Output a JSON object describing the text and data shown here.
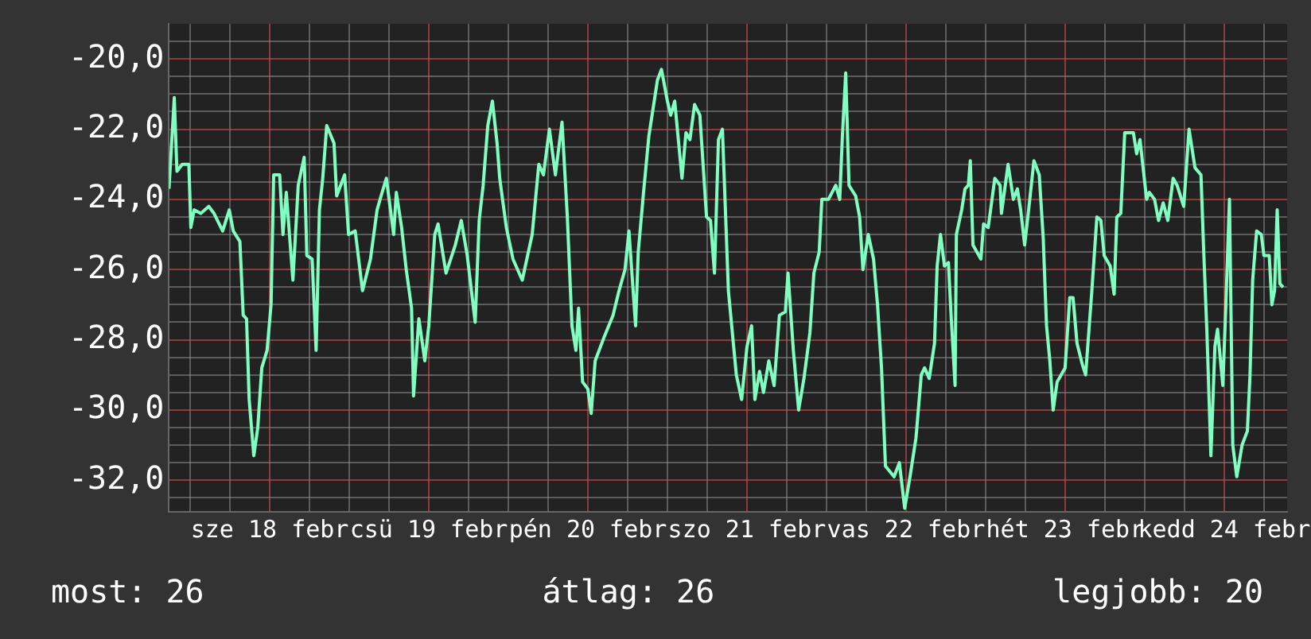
{
  "chart_data": {
    "type": "line",
    "color": "#80ffc0",
    "grid": true,
    "legend": false,
    "xlim": [
      "--02-17T08:48",
      "--02-24T09:30"
    ],
    "xticks": [
      {
        "value": "--02-17T12:00",
        "label": null
      },
      {
        "value": "--02-17T18:00",
        "label": null
      },
      {
        "value": "--02-18",
        "label": "sze 18 febr"
      },
      {
        "value": "--02-18T06:00",
        "label": null
      },
      {
        "value": "--02-18T12:00",
        "label": null
      },
      {
        "value": "--02-18T18:00",
        "label": null
      },
      {
        "value": "--02-19",
        "label": "csü 19 febr"
      },
      {
        "value": "--02-19T06:00",
        "label": null
      },
      {
        "value": "--02-19T12:00",
        "label": null
      },
      {
        "value": "--02-19T18:00",
        "label": null
      },
      {
        "value": "--02-20",
        "label": "pén 20 febr"
      },
      {
        "value": "--02-20T06:00",
        "label": null
      },
      {
        "value": "--02-20T12:00",
        "label": null
      },
      {
        "value": "--02-20T18:00",
        "label": null
      },
      {
        "value": "--02-21",
        "label": "szo 21 febr"
      },
      {
        "value": "--02-21T06:00",
        "label": null
      },
      {
        "value": "--02-21T12:00",
        "label": null
      },
      {
        "value": "--02-21T18:00",
        "label": null
      },
      {
        "value": "--02-22",
        "label": "vas 22 febr"
      },
      {
        "value": "--02-22T06:00",
        "label": null
      },
      {
        "value": "--02-22T12:00",
        "label": null
      },
      {
        "value": "--02-22T18:00",
        "label": null
      },
      {
        "value": "--02-23",
        "label": "hét 23 febr"
      },
      {
        "value": "--02-23T06:00",
        "label": null
      },
      {
        "value": "--02-23T12:00",
        "label": null
      },
      {
        "value": "--02-23T18:00",
        "label": null
      },
      {
        "value": "--02-24",
        "label": "kedd 24 febr"
      },
      {
        "value": "--02-24T06:00",
        "label": null
      }
    ],
    "ylim": [
      -32.9,
      -19.0
    ],
    "yticks": [
      {
        "value": -19.5,
        "label": null
      },
      {
        "value": -20,
        "label": "-20,0"
      },
      {
        "value": -20.5,
        "label": null
      },
      {
        "value": -21,
        "label": null
      },
      {
        "value": -21.5,
        "label": null
      },
      {
        "value": -22,
        "label": "-22,0"
      },
      {
        "value": -22.5,
        "label": null
      },
      {
        "value": -23,
        "label": null
      },
      {
        "value": -23.5,
        "label": null
      },
      {
        "value": -24,
        "label": "-24,0"
      },
      {
        "value": -24.5,
        "label": null
      },
      {
        "value": -25,
        "label": null
      },
      {
        "value": -25.5,
        "label": null
      },
      {
        "value": -26,
        "label": "-26,0"
      },
      {
        "value": -26.5,
        "label": null
      },
      {
        "value": -27,
        "label": null
      },
      {
        "value": -27.5,
        "label": null
      },
      {
        "value": -28,
        "label": "-28,0"
      },
      {
        "value": -28.5,
        "label": null
      },
      {
        "value": -29,
        "label": null
      },
      {
        "value": -29.5,
        "label": null
      },
      {
        "value": -30,
        "label": "-30,0"
      },
      {
        "value": -30.5,
        "label": null
      },
      {
        "value": -31,
        "label": null
      },
      {
        "value": -31.5,
        "label": null
      },
      {
        "value": -32,
        "label": "-32,0"
      },
      {
        "value": -32.5,
        "label": null
      }
    ],
    "annotations": [
      "most: 26",
      "átlag: 26",
      "legjobb: 20"
    ],
    "x": [
      "--02-17T08:48",
      "--02-17T09:36",
      "--02-17T10:00",
      "--02-17T10:48",
      "--02-17T11:48",
      "--02-17T12:06",
      "--02-17T12:36",
      "--02-17T13:36",
      "--02-17T14:48",
      "--02-17T15:36",
      "--02-17T16:54",
      "--02-17T17:54",
      "--02-17T18:30",
      "--02-17T19:30",
      "--02-17T20:00",
      "--02-17T20:30",
      "--02-17T20:54",
      "--02-17T21:36",
      "--02-17T22:12",
      "--02-17T22:48",
      "--02-17T23:36",
      "--02-18T00:12",
      "--02-18T00:36",
      "--02-18T01:30",
      "--02-18T02:00",
      "--02-18T02:30",
      "--02-18T03:06",
      "--02-18T03:30",
      "--02-18T04:18",
      "--02-18T05:12",
      "--02-18T05:36",
      "--02-18T06:24",
      "--02-18T07:00",
      "--02-18T07:30",
      "--02-18T08:00",
      "--02-18T08:36",
      "--02-18T09:42",
      "--02-18T10:06",
      "--02-18T10:42",
      "--02-18T11:18",
      "--02-18T11:54",
      "--02-18T12:54",
      "--02-18T14:00",
      "--02-18T15:12",
      "--02-18T16:12",
      "--02-18T16:48",
      "--02-18T17:36",
      "--02-18T18:42",
      "--02-18T19:06",
      "--02-18T19:54",
      "--02-18T20:36",
      "--02-18T21:24",
      "--02-18T21:42",
      "--02-18T22:30",
      "--02-18T23:24",
      "--02-19T00:00",
      "--02-19T00:54",
      "--02-19T01:24",
      "--02-19T02:36",
      "--02-19T04:00",
      "--02-19T04:54",
      "--02-19T05:48",
      "--02-19T07:00",
      "--02-19T07:36",
      "--02-19T08:12",
      "--02-19T08:54",
      "--02-19T09:36",
      "--02-19T10:18",
      "--02-19T10:42",
      "--02-19T11:42",
      "--02-19T12:42",
      "--02-19T14:06",
      "--02-19T15:36",
      "--02-19T16:36",
      "--02-19T17:18",
      "--02-19T18:12",
      "--02-19T19:06",
      "--02-19T20:06",
      "--02-19T20:54",
      "--02-19T21:36",
      "--02-19T22:12",
      "--02-19T22:36",
      "--02-19T23:12",
      "--02-20T00:00",
      "--02-20T00:30",
      "--02-20T01:06",
      "--02-20T02:30",
      "--02-20T03:48",
      "--02-20T04:42",
      "--02-20T05:36",
      "--02-20T06:12",
      "--02-20T07:12",
      "--02-20T07:36",
      "--02-20T08:24",
      "--02-20T09:12",
      "--02-20T10:30",
      "--02-20T11:06",
      "--02-20T12:00",
      "--02-20T12:30",
      "--02-20T13:06",
      "--02-20T14:12",
      "--02-20T14:48",
      "--02-20T15:24",
      "--02-20T16:06",
      "--02-20T16:54",
      "--02-20T17:54",
      "--02-20T18:30",
      "--02-20T19:06",
      "--02-20T19:42",
      "--02-20T20:18",
      "--02-20T21:12",
      "--02-20T21:48",
      "--02-20T22:24",
      "--02-20T23:12",
      "--02-21T00:00",
      "--02-21T00:42",
      "--02-21T01:12",
      "--02-21T01:54",
      "--02-21T02:30",
      "--02-21T03:18",
      "--02-21T04:06",
      "--02-21T04:54",
      "--02-21T05:48",
      "--02-21T06:12",
      "--02-21T07:00",
      "--02-21T07:48",
      "--02-21T08:36",
      "--02-21T09:30",
      "--02-21T10:06",
      "--02-21T10:54",
      "--02-21T11:18",
      "--02-21T12:18",
      "--02-21T13:24",
      "--02-21T14:00",
      "--02-21T14:24",
      "--02-21T14:54",
      "--02-21T15:24",
      "--02-21T16:24",
      "--02-21T17:00",
      "--02-21T17:30",
      "--02-21T18:18",
      "--02-21T19:06",
      "--02-21T19:42",
      "--02-21T20:18",
      "--02-21T20:54",
      "--02-21T22:12",
      "--02-21T23:00",
      "--02-21T23:48",
      "--02-22T00:36",
      "--02-22T01:30",
      "--02-22T02:18",
      "--02-22T02:48",
      "--02-22T03:30",
      "--02-22T04:18",
      "--02-22T04:42",
      "--02-22T05:12",
      "--02-22T05:48",
      "--02-22T06:24",
      "--02-22T06:48",
      "--02-22T07:24",
      "--02-22T07:36",
      "--02-22T08:24",
      "--02-22T08:54",
      "--02-22T09:24",
      "--02-22T09:42",
      "--02-22T10:06",
      "--02-22T11:18",
      "--02-22T11:42",
      "--02-22T12:24",
      "--02-22T13:24",
      "--02-22T14:12",
      "--02-22T14:24",
      "--02-22T15:24",
      "--02-22T16:12",
      "--02-22T16:48",
      "--02-22T17:18",
      "--02-22T17:54",
      "--02-22T18:30",
      "--02-22T19:18",
      "--02-22T20:06",
      "--02-22T20:42",
      "--02-22T21:12",
      "--02-22T21:42",
      "--02-22T22:12",
      "--02-22T22:48",
      "--02-23T00:00",
      "--02-23T00:42",
      "--02-23T01:12",
      "--02-23T01:48",
      "--02-23T02:36",
      "--02-23T03:06",
      "--02-23T04:00",
      "--02-23T04:48",
      "--02-23T05:24",
      "--02-23T05:54",
      "--02-23T06:48",
      "--02-23T07:24",
      "--02-23T07:48",
      "--02-23T08:24",
      "--02-23T09:00",
      "--02-23T10:18",
      "--02-23T10:48",
      "--02-23T11:18",
      "--02-23T12:18",
      "--02-23T12:42",
      "--02-23T13:30",
      "--02-23T14:06",
      "--02-23T14:48",
      "--02-23T15:30",
      "--02-23T16:18",
      "--02-23T16:54",
      "--02-23T17:54",
      "--02-23T18:42",
      "--02-23T19:36",
      "--02-23T20:30",
      "--02-23T20:54",
      "--02-23T21:24",
      "--02-23T22:00",
      "--02-23T22:36",
      "--02-23T23:00",
      "--02-23T23:48",
      "--02-24T00:12",
      "--02-24T00:48",
      "--02-24T01:18",
      "--02-24T01:54",
      "--02-24T02:42",
      "--02-24T03:30",
      "--02-24T03:54",
      "--02-24T04:18",
      "--02-24T04:54",
      "--02-24T05:36",
      "--02-24T06:00",
      "--02-24T06:48",
      "--02-24T07:12",
      "--02-24T07:36",
      "--02-24T08:00",
      "--02-24T08:24",
      "--02-24T08:54"
    ],
    "values": [
      -23.7,
      -21.1,
      -23.2,
      -23.0,
      -23.0,
      -24.8,
      -24.3,
      -24.4,
      -24.2,
      -24.4,
      -24.9,
      -24.3,
      -24.9,
      -25.2,
      -27.3,
      -27.4,
      -29.7,
      -31.3,
      -30.5,
      -28.8,
      -28.3,
      -27.0,
      -23.3,
      -23.3,
      -25.0,
      -23.8,
      -25.3,
      -26.3,
      -23.6,
      -22.8,
      -25.6,
      -25.7,
      -28.3,
      -24.3,
      -23.4,
      -21.9,
      -22.4,
      -23.9,
      -23.6,
      -23.3,
      -25.0,
      -24.9,
      -26.6,
      -25.7,
      -24.3,
      -23.9,
      -23.4,
      -25.0,
      -23.8,
      -24.8,
      -26.0,
      -27.1,
      -29.6,
      -27.4,
      -28.6,
      -27.6,
      -25.0,
      -24.7,
      -26.1,
      -25.3,
      -24.6,
      -25.6,
      -27.5,
      -24.6,
      -23.6,
      -21.9,
      -21.2,
      -22.4,
      -23.4,
      -24.8,
      -25.7,
      -26.3,
      -25.0,
      -23.0,
      -23.3,
      -22.0,
      -23.3,
      -21.8,
      -24.5,
      -27.6,
      -28.3,
      -27.1,
      -29.2,
      -29.4,
      -30.1,
      -28.6,
      -27.9,
      -27.3,
      -26.6,
      -26.0,
      -24.9,
      -27.6,
      -25.5,
      -23.8,
      -22.2,
      -20.6,
      -20.3,
      -21.2,
      -21.6,
      -21.2,
      -23.4,
      -22.1,
      -22.3,
      -21.3,
      -21.6,
      -24.5,
      -24.6,
      -26.1,
      -22.3,
      -22.0,
      -26.6,
      -27.8,
      -29.0,
      -29.7,
      -28.2,
      -27.6,
      -29.7,
      -28.9,
      -29.5,
      -28.6,
      -29.3,
      -27.3,
      -27.2,
      -26.1,
      -28.3,
      -30.0,
      -29.1,
      -27.8,
      -26.1,
      -25.5,
      -24.0,
      -24.0,
      -23.6,
      -24.0,
      -22.2,
      -20.4,
      -23.6,
      -23.9,
      -24.5,
      -26.0,
      -25.0,
      -25.7,
      -27.0,
      -28.8,
      -31.6,
      -31.9,
      -31.5,
      -32.8,
      -31.9,
      -30.8,
      -29.0,
      -28.8,
      -29.1,
      -28.1,
      -25.9,
      -25.0,
      -25.9,
      -25.8,
      -27.3,
      -29.3,
      -25.0,
      -24.3,
      -23.7,
      -23.6,
      -22.9,
      -25.3,
      -25.7,
      -24.7,
      -24.8,
      -23.4,
      -23.6,
      -24.4,
      -23.0,
      -24.0,
      -23.7,
      -24.3,
      -25.3,
      -24.3,
      -22.9,
      -23.3,
      -25.1,
      -27.6,
      -28.6,
      -30.0,
      -29.2,
      -28.8,
      -26.8,
      -26.8,
      -28.1,
      -28.7,
      -29.0,
      -26.7,
      -24.5,
      -24.6,
      -25.6,
      -25.9,
      -26.7,
      -24.5,
      -24.4,
      -22.1,
      -22.1,
      -22.7,
      -22.3,
      -24.0,
      -23.8,
      -24.0,
      -24.6,
      -24.1,
      -24.6,
      -23.4,
      -23.6,
      -24.2,
      -22.0,
      -23.1,
      -23.3,
      -25.4,
      -27.8,
      -31.3,
      -28.2,
      -27.7,
      -29.3,
      -27.3,
      -24.0,
      -31.0,
      -31.9,
      -31.0,
      -30.6,
      -29.0,
      -26.3,
      -24.9,
      -25.0,
      -25.6,
      -25.6,
      -27.0,
      -26.6,
      -24.3,
      -26.4,
      -26.5
    ]
  }
}
